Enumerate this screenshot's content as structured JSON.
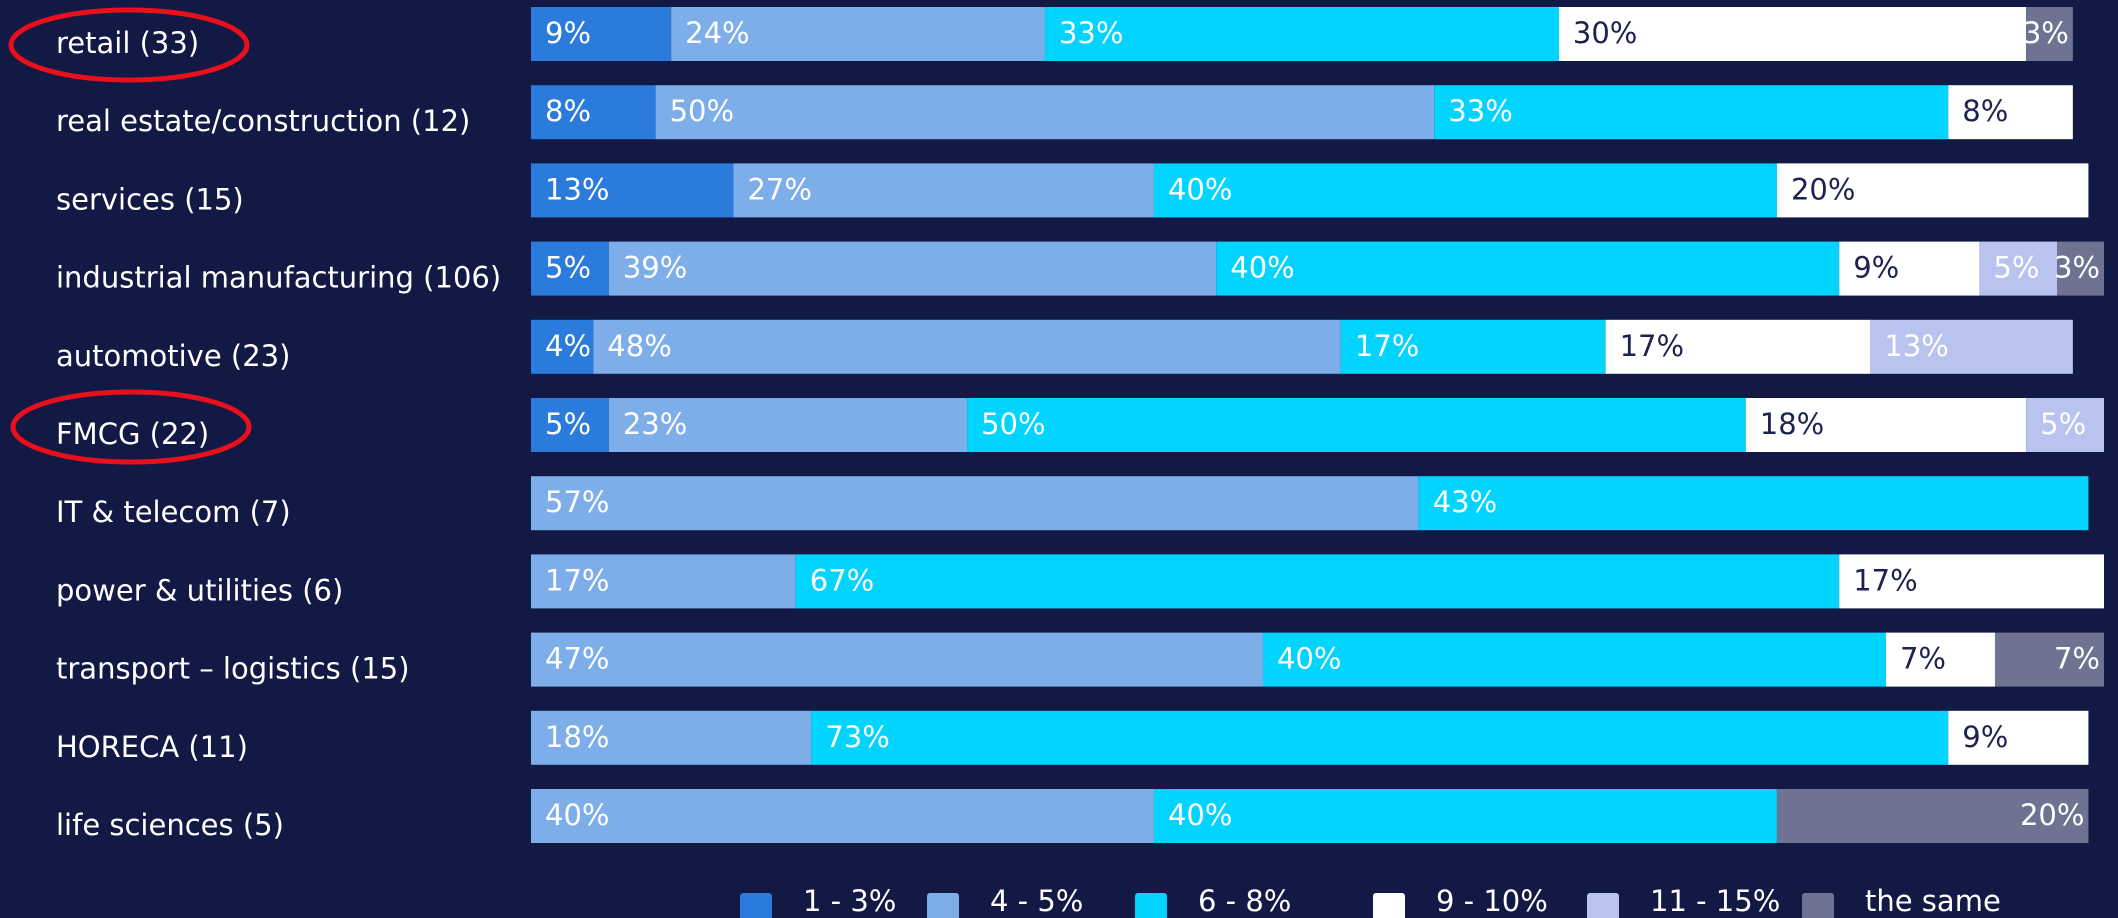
{
  "chart_data": {
    "type": "stacked-bar",
    "categories": [
      "retail (33)",
      "real estate/construction (12)",
      "services (15)",
      "industrial manufacturing (106)",
      "automotive (23)",
      "FMCG (22)",
      "IT & telecom (7)",
      "power & utilities (6)",
      "transport – logistics (15)",
      "HORECA (11)",
      "life sciences (5)"
    ],
    "series": [
      {
        "name": "1 - 3%",
        "color": "#2a7bdc",
        "values": [
          9,
          8,
          13,
          5,
          4,
          5,
          null,
          null,
          null,
          null,
          null
        ],
        "value_labels": [
          "9%",
          "8%",
          "13%",
          "5%",
          "4%",
          "5%",
          null,
          null,
          null,
          null,
          null
        ]
      },
      {
        "name": "4 - 5%",
        "color": "#7eaee9",
        "values": [
          24,
          50,
          27,
          39,
          48,
          23,
          57,
          17,
          47,
          18,
          40
        ],
        "value_labels": [
          "24%",
          "50%",
          "27%",
          "39%",
          "48%",
          "23%",
          "57%",
          "17%",
          "47%",
          "18%",
          "40%"
        ]
      },
      {
        "name": "6 - 8%",
        "color": "#00d4ff",
        "values": [
          33,
          33,
          40,
          40,
          17,
          50,
          43,
          67,
          40,
          73,
          40
        ],
        "value_labels": [
          "33%",
          "33%",
          "40%",
          "40%",
          "17%",
          "50%",
          "43%",
          "67%",
          "40%",
          "73%",
          "40%"
        ]
      },
      {
        "name": "9 - 10%",
        "color": "#ffffff",
        "values": [
          30,
          8,
          20,
          9,
          17,
          18,
          null,
          17,
          7,
          9,
          null
        ],
        "value_labels": [
          "30%",
          "8%",
          "20%",
          "9%",
          "17%",
          "18%",
          null,
          "17%",
          "7%",
          "9%",
          null
        ]
      },
      {
        "name": "11 - 15%",
        "color": "#b8c3f0",
        "values": [
          null,
          null,
          null,
          5,
          13,
          5,
          null,
          null,
          null,
          null,
          null
        ],
        "value_labels": [
          null,
          null,
          null,
          "5%",
          "13%",
          "5%",
          null,
          null,
          null,
          null,
          null
        ]
      },
      {
        "name": "the same",
        "color": "#6d7390",
        "values": [
          3,
          null,
          null,
          3,
          null,
          null,
          null,
          null,
          7,
          null,
          20
        ],
        "value_labels": [
          "3%",
          null,
          null,
          "3%",
          null,
          null,
          null,
          null,
          "7%",
          null,
          "20%"
        ]
      }
    ]
  }
}
